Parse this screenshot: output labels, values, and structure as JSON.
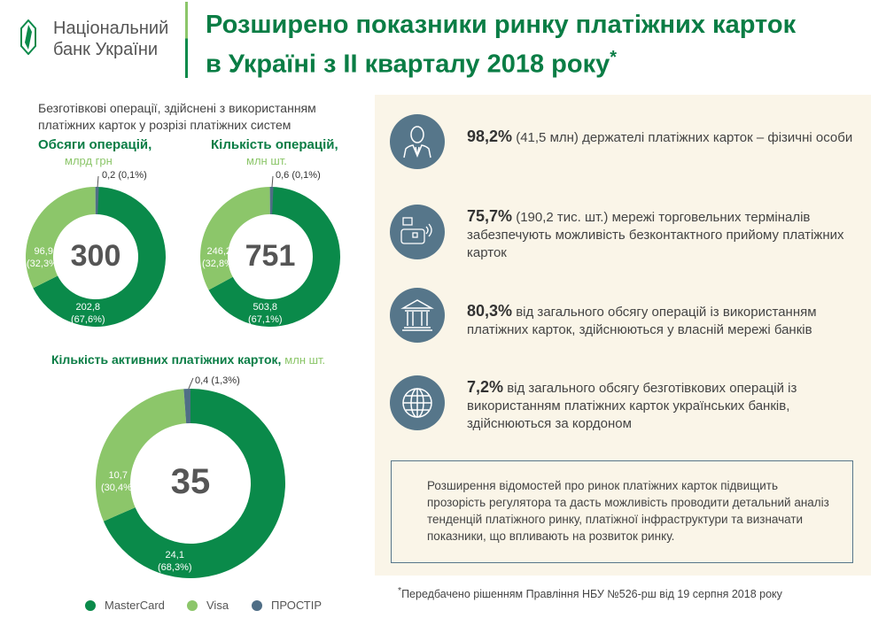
{
  "logo": {
    "line1": "Національний",
    "line2": "банк України"
  },
  "title": {
    "line1": "Розширено показники ринку платіжних карток",
    "line2": "в Україні з ІІ кварталу 2018 року",
    "mark": "*"
  },
  "subtitle": {
    "line1": "Безготівкові операції, здійснені з використанням",
    "line2": "платіжних карток у розрізі платіжних систем"
  },
  "colors": {
    "MasterCard": "#0a8a4a",
    "Visa": "#8cc66a",
    "ПРОСТІР": "#4f6e86"
  },
  "chart_data": [
    {
      "type": "pie",
      "title": "Обсяги операцій,",
      "unit": "млрд грн",
      "total": "300",
      "categories": [
        "MasterCard",
        "Visa",
        "ПРОСТІР"
      ],
      "values": [
        202.8,
        96.9,
        0.2
      ],
      "labels": [
        "202,8\n(67,6%)",
        "96,9\n(32,3%)",
        "0,2 (0,1%)"
      ]
    },
    {
      "type": "pie",
      "title": "Кількість операцій,",
      "unit": "млн шт.",
      "total": "751",
      "categories": [
        "MasterCard",
        "Visa",
        "ПРОСТІР"
      ],
      "values": [
        503.8,
        246.2,
        0.6
      ],
      "labels": [
        "503,8\n(67,1%)",
        "246,2\n(32,8%)",
        "0,6 (0,1%)"
      ]
    },
    {
      "type": "pie",
      "title": "Кількість активних платіжних карток,",
      "unit": "млн шт.",
      "total": "35",
      "categories": [
        "MasterCard",
        "Visa",
        "ПРОСТІР"
      ],
      "values": [
        24.1,
        10.7,
        0.4
      ],
      "labels": [
        "24,1\n(68,3%)",
        "10,7\n(30,4%)",
        "0,4 (1,3%)"
      ]
    }
  ],
  "legend": [
    "MasterCard",
    "Visa",
    "ПРОСТІР"
  ],
  "facts": [
    {
      "value": "98,2%",
      "text": " (41,5 млн) держателі платіжних карток – фізичні особи",
      "icon": "person-icon"
    },
    {
      "value": "75,7%",
      "text": " (190,2 тис. шт.) мережі торговельних терміналів забезпечують можливість безконтактного прийому платіжних карток",
      "icon": "contactless-terminal-icon"
    },
    {
      "value": "80,3%",
      "text": " від загального обсягу операцій із використанням платіжних карток, здійснюються у власній мережі банків",
      "icon": "bank-icon"
    },
    {
      "value": "7,2%",
      "text": " від загального обсягу безготівкових операцій із використанням платіжних карток українських банків, здійснюються за кордоном",
      "icon": "globe-icon"
    }
  ],
  "note": "Розширення відомостей про ринок платіжних карток підвищить прозорість регулятора та дасть можливість проводити детальний аналіз тенденцій платіжного ринку, платіжної інфраструктури та визначати показники, що впливають на розвиток ринку.",
  "footnote": {
    "mark": "*",
    "text": "Передбачено рішенням Правління НБУ №526-рш від 19 серпня 2018 року"
  }
}
